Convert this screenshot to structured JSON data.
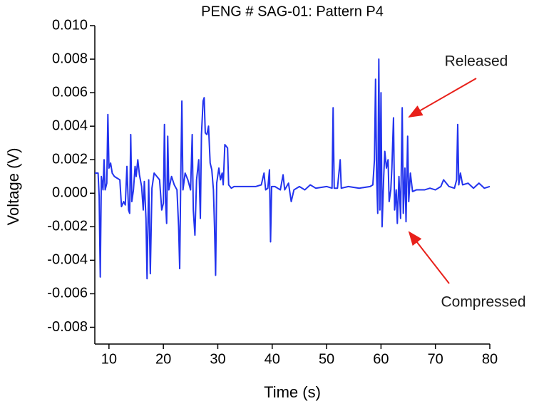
{
  "chart_data": {
    "type": "line",
    "title": "PENG # SAG-01: Pattern P4",
    "x_label": "Time (s)",
    "y_label": "Voltage (V)",
    "color": "#2233ee",
    "xlim": [
      7.4,
      80
    ],
    "ylim": [
      -0.009,
      0.01
    ],
    "xticks": [
      10,
      20,
      30,
      40,
      50,
      60,
      70,
      80
    ],
    "yticks": [
      {
        "value": 0.01,
        "label": "0.010"
      },
      {
        "value": 0.008,
        "label": "0.008"
      },
      {
        "value": 0.006,
        "label": "0.006"
      },
      {
        "value": 0.004,
        "label": "0.004"
      },
      {
        "value": 0.002,
        "label": "0.002"
      },
      {
        "value": 0,
        "label": "0.000"
      },
      {
        "value": -0.002,
        "label": "-0.002"
      },
      {
        "value": -0.004,
        "label": "-0.004"
      },
      {
        "value": -0.006,
        "label": "-0.006"
      },
      {
        "value": -0.008,
        "label": "-0.008"
      }
    ],
    "annotations": [
      "Released",
      "Compressed"
    ],
    "x": [
      7.4,
      8.0,
      8.2,
      8.4,
      8.6,
      8.9,
      9.1,
      9.3,
      9.6,
      9.8,
      10.0,
      10.3,
      10.6,
      11.0,
      11.5,
      12.0,
      12.3,
      12.7,
      13.0,
      13.3,
      13.6,
      13.8,
      14.0,
      14.2,
      14.5,
      14.8,
      15.0,
      15.3,
      15.6,
      16.0,
      16.3,
      16.5,
      16.8,
      17.0,
      17.3,
      17.6,
      17.9,
      18.3,
      18.8,
      19.3,
      19.7,
      20.0,
      20.2,
      20.4,
      20.6,
      20.8,
      21.0,
      21.5,
      22.0,
      22.5,
      22.8,
      23.0,
      23.2,
      23.4,
      23.6,
      24.0,
      24.5,
      25.0,
      25.3,
      25.5,
      25.8,
      26.1,
      26.5,
      26.8,
      27.0,
      27.3,
      27.5,
      27.7,
      28.0,
      28.3,
      28.6,
      28.9,
      29.2,
      29.4,
      29.6,
      29.8,
      30.2,
      30.5,
      30.8,
      31.0,
      31.3,
      31.8,
      32.0,
      32.5,
      33.0,
      35.0,
      37.0,
      38.0,
      38.5,
      38.8,
      39.2,
      39.5,
      39.7,
      39.9,
      40.5,
      41.5,
      42.0,
      42.3,
      43.0,
      43.5,
      44.0,
      45.0,
      46.0,
      47.0,
      48.0,
      50.0,
      51.0,
      51.2,
      51.4,
      52.0,
      52.5,
      52.7,
      54.0,
      56.0,
      58.0,
      58.5,
      58.8,
      59.0,
      59.2,
      59.4,
      59.6,
      59.8,
      60.0,
      60.2,
      60.5,
      60.7,
      61.0,
      61.3,
      61.5,
      61.8,
      62.0,
      62.3,
      62.5,
      62.8,
      63.0,
      63.3,
      63.6,
      63.9,
      64.1,
      64.4,
      64.6,
      64.9,
      65.1,
      65.4,
      65.8,
      66.5,
      68.0,
      69.0,
      70.0,
      71.0,
      71.5,
      72.5,
      73.5,
      73.9,
      74.1,
      74.3,
      74.6,
      75.0,
      76.0,
      77.0,
      78.0,
      79.0,
      80.0
    ],
    "values": [
      0.0012,
      0.0012,
      -0.0002,
      -0.005,
      0.001,
      0.0002,
      0.002,
      0.0002,
      0.0006,
      0.0047,
      0.0015,
      0.0018,
      0.0012,
      0.001,
      0.0009,
      0.0008,
      -0.0008,
      -0.0005,
      -0.0007,
      0.0016,
      -0.001,
      -0.0012,
      0.0035,
      -0.0005,
      0.0002,
      0.0016,
      0.001,
      0.002,
      0.0011,
      0.0004,
      -0.001,
      0.0007,
      -0.0015,
      -0.0051,
      0.0008,
      -0.0048,
      0.0003,
      0.0012,
      0.001,
      0.0008,
      -0.001,
      -0.0006,
      0.0041,
      -0.0005,
      -0.0018,
      0.0034,
      0.0002,
      0.001,
      0.0005,
      0.0002,
      -0.002,
      -0.0045,
      0.001,
      0.0055,
      0.0002,
      0.0012,
      0.0008,
      0.0002,
      0.0035,
      -0.001,
      -0.0025,
      0.0008,
      0.002,
      -0.0015,
      0.0035,
      0.0055,
      0.0057,
      0.0036,
      0.0035,
      0.004,
      0.0018,
      0.0014,
      0.0002,
      -0.002,
      -0.0049,
      0.0006,
      0.0015,
      0.0008,
      0.0012,
      0.0005,
      0.0029,
      0.0027,
      0.0005,
      0.0003,
      0.0004,
      0.0004,
      0.0004,
      0.0005,
      0.0012,
      0.0002,
      0.0003,
      0.0014,
      -0.0029,
      0.0004,
      0.0004,
      0.0002,
      0.0011,
      0.0002,
      0.0006,
      -0.0005,
      0.0002,
      0.0004,
      0.0002,
      0.0005,
      0.0003,
      0.0004,
      0.0003,
      0.0051,
      0.0003,
      0.0003,
      0.002,
      0.0003,
      0.0004,
      0.0003,
      0.0004,
      0.0005,
      0.002,
      0.0068,
      0.001,
      -0.0012,
      0.008,
      -0.001,
      0.006,
      -0.002,
      0.001,
      0.0025,
      0.0015,
      0.002,
      -0.0005,
      0.0002,
      0.0015,
      0.0045,
      -0.001,
      0.0002,
      -0.0018,
      0.001,
      -0.0015,
      0.0051,
      -0.0012,
      0.0015,
      -0.0017,
      0.0034,
      -0.0005,
      0.0012,
      0.0001,
      0.0002,
      0.0002,
      0.0003,
      0.0002,
      0.0004,
      0.0008,
      0.0004,
      0.0003,
      0.0008,
      0.0041,
      0.0005,
      0.0012,
      0.0005,
      0.0006,
      0.0003,
      0.0006,
      0.0003,
      0.0004
    ]
  }
}
